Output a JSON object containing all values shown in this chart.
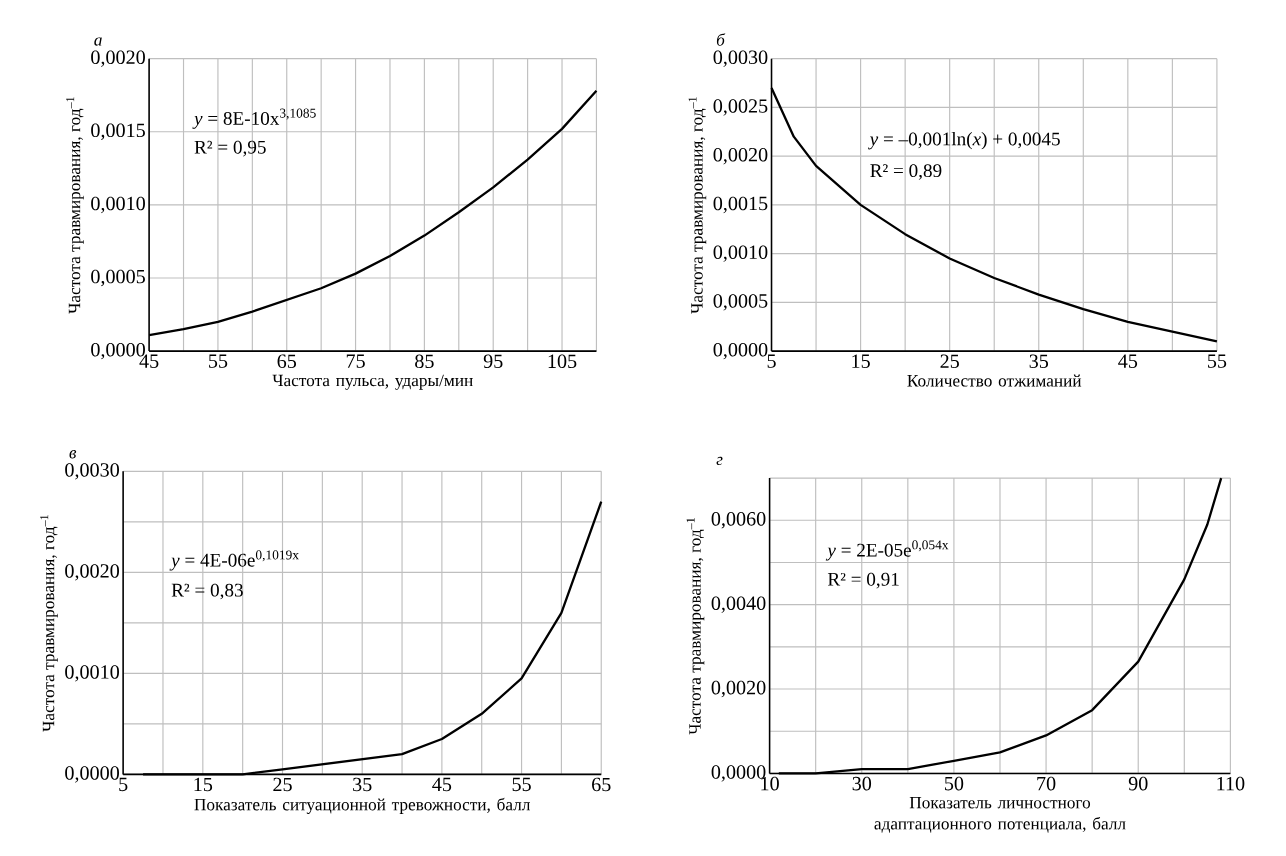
{
  "chart_data": [
    {
      "type": "line",
      "title": "а",
      "xlabel": "Частота пульса, удары/мин",
      "ylabel": "Частота травмирования, год$^{–1}$",
      "annotations": [
        "*y* = 8E-10x$^{3,1085}$",
        "R² = 0,95"
      ],
      "xlim": [
        45,
        110
      ],
      "ylim": [
        0,
        0.002
      ],
      "xticks": [
        45,
        {
          "value": 50,
          "label": null
        },
        55,
        {
          "value": 60,
          "label": null
        },
        65,
        {
          "value": 70,
          "label": null
        },
        75,
        {
          "value": 80,
          "label": null
        },
        85,
        {
          "value": 90,
          "label": null
        },
        95,
        {
          "value": 100,
          "label": null
        },
        105,
        {
          "value": 110,
          "label": null
        }
      ],
      "yticks": [
        {
          "value": 0,
          "label": "0,0000"
        },
        {
          "value": 0.0005,
          "label": "0,0005"
        },
        {
          "value": 0.001,
          "label": "0,0010"
        },
        {
          "value": 0.0015,
          "label": "0,0015"
        },
        {
          "value": 0.002,
          "label": "0,0020"
        }
      ],
      "grid": true,
      "x": [
        45,
        50,
        55,
        60,
        65,
        70,
        75,
        80,
        85,
        90,
        95,
        100,
        105,
        110
      ],
      "series": [
        {
          "color": "#000000",
          "values": [
            0.00011,
            0.00015,
            0.0002,
            0.00027,
            0.00035,
            0.00043,
            0.00053,
            0.00065,
            0.00079,
            0.00095,
            0.00112,
            0.00131,
            0.00152,
            0.00178
          ]
        }
      ]
    },
    {
      "type": "line",
      "title": "б",
      "xlabel": "Количество отжиманий",
      "ylabel": "Частота травмирования, год$^{–1}$",
      "annotations": [
        "*y* = –0,001ln(*x*) + 0,0045",
        "R² = 0,89"
      ],
      "xlim": [
        5,
        55
      ],
      "ylim": [
        0,
        0.003
      ],
      "xticks": [
        5,
        {
          "value": 10,
          "label": null
        },
        15,
        {
          "value": 20,
          "label": null
        },
        25,
        {
          "value": 30,
          "label": null
        },
        35,
        {
          "value": 40,
          "label": null
        },
        45,
        {
          "value": 50,
          "label": null
        },
        55
      ],
      "yticks": [
        {
          "value": 0,
          "label": "0,0000"
        },
        {
          "value": 0.0005,
          "label": "0,0005"
        },
        {
          "value": 0.001,
          "label": "0,0010"
        },
        {
          "value": 0.0015,
          "label": "0,0015"
        },
        {
          "value": 0.002,
          "label": "0,0020"
        },
        {
          "value": 0.0025,
          "label": "0,0025"
        },
        {
          "value": 0.003,
          "label": "0,0030"
        }
      ],
      "grid": true,
      "x": [
        5,
        7.5,
        10,
        15,
        20,
        25,
        30,
        35,
        40,
        45,
        50,
        55
      ],
      "series": [
        {
          "color": "#000000",
          "values": [
            0.0027,
            0.0022,
            0.0019,
            0.0015,
            0.0012,
            0.00095,
            0.00075,
            0.00058,
            0.00043,
            0.0003,
            0.0002,
            0.0001
          ]
        }
      ]
    },
    {
      "type": "line",
      "title": "в",
      "xlabel": "Показатель ситуационной тревожности, балл",
      "ylabel": "Частота травмирования, год$^{–1}$",
      "annotations": [
        "*y* = 4E-06e$^{0,1019x}$",
        "R² = 0,83"
      ],
      "xlim": [
        5,
        65
      ],
      "ylim": [
        0,
        0.003
      ],
      "xticks": [
        5,
        {
          "value": 10,
          "label": null
        },
        15,
        {
          "value": 20,
          "label": null
        },
        25,
        {
          "value": 30,
          "label": null
        },
        35,
        {
          "value": 40,
          "label": null
        },
        45,
        {
          "value": 50,
          "label": null
        },
        55,
        {
          "value": 60,
          "label": null
        },
        65
      ],
      "yticks": [
        {
          "value": 0,
          "label": "0,0000"
        },
        {
          "value": 0.0005,
          "label": null
        },
        {
          "value": 0.001,
          "label": "0,0010"
        },
        {
          "value": 0.0015,
          "label": null
        },
        {
          "value": 0.002,
          "label": "0,0020"
        },
        {
          "value": 0.0025,
          "label": null
        },
        {
          "value": 0.003,
          "label": "0,0030"
        }
      ],
      "grid": true,
      "x": [
        7.5,
        15,
        20,
        25,
        30,
        35,
        40,
        45,
        50,
        55,
        60,
        65
      ],
      "series": [
        {
          "color": "#000000",
          "values": [
            0,
            0,
            0,
            5e-05,
            0.0001,
            0.00015,
            0.0002,
            0.00035,
            0.0006,
            0.00095,
            0.0016,
            0.0027
          ]
        }
      ]
    },
    {
      "type": "line",
      "title": "г",
      "xlabel": "Показатель личностного адаптационного потенциала, балл",
      "ylabel": "Частота травмирования, год$^{–1}$",
      "annotations": [
        "*y* = 2E-05e$^{0,054x}$",
        "R² = 0,91"
      ],
      "xlim": [
        10,
        110
      ],
      "ylim": [
        0,
        0.007
      ],
      "xticks": [
        10,
        {
          "value": 20,
          "label": null
        },
        30,
        {
          "value": 40,
          "label": null
        },
        50,
        {
          "value": 60,
          "label": null
        },
        70,
        {
          "value": 80,
          "label": null
        },
        90,
        {
          "value": 100,
          "label": null
        },
        110
      ],
      "yticks": [
        {
          "value": 0,
          "label": "0,0000"
        },
        {
          "value": 0.001,
          "label": null
        },
        {
          "value": 0.002,
          "label": "0,0020"
        },
        {
          "value": 0.003,
          "label": null
        },
        {
          "value": 0.004,
          "label": "0,0040"
        },
        {
          "value": 0.005,
          "label": null
        },
        {
          "value": 0.006,
          "label": "0,0060"
        },
        {
          "value": 0.007,
          "label": null
        }
      ],
      "grid": true,
      "x": [
        12,
        20,
        30,
        40,
        50,
        60,
        70,
        80,
        90,
        100,
        105,
        108
      ],
      "series": [
        {
          "color": "#000000",
          "values": [
            0,
            0,
            0.0001,
            0.0001,
            0.0003,
            0.0005,
            0.0009,
            0.0015,
            0.00265,
            0.0046,
            0.0059,
            0.007
          ]
        }
      ]
    }
  ]
}
